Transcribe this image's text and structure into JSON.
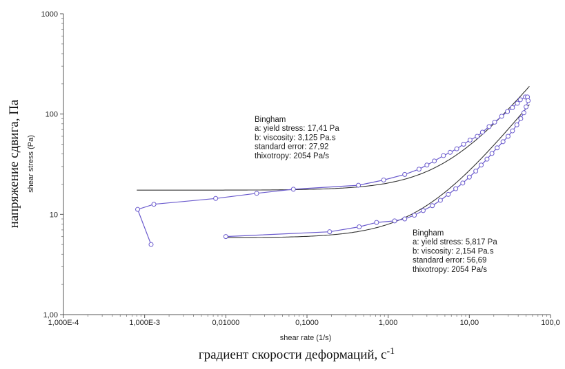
{
  "chart_data": {
    "type": "scatter",
    "title": "",
    "xlabel": "shear rate (1/s)",
    "ylabel": "shear stress (Pa)",
    "xlabel_ru": "градиент скорости деформаций, с",
    "xlabel_ru_sup": "-1",
    "ylabel_ru": "напряжение сдвига, Па",
    "xscale": "log",
    "yscale": "log",
    "xlim": [
      0.0001,
      100
    ],
    "ylim": [
      1,
      1000
    ],
    "grid": false,
    "x_ticks": [
      {
        "value": 0.0001,
        "label": "1,000E-4"
      },
      {
        "value": 0.001,
        "label": "1,000E-3"
      },
      {
        "value": 0.01,
        "label": "0,01000"
      },
      {
        "value": 0.1,
        "label": "0,1000"
      },
      {
        "value": 1,
        "label": "1,000"
      },
      {
        "value": 10,
        "label": "10,00"
      },
      {
        "value": 100,
        "label": "100,0"
      }
    ],
    "y_ticks": [
      {
        "value": 1,
        "label": "1,00"
      },
      {
        "value": 10,
        "label": "10"
      },
      {
        "value": 100,
        "label": "100"
      },
      {
        "value": 1000,
        "label": "1000"
      }
    ],
    "series": [
      {
        "color": "#6a5acd",
        "marker": "circle-open",
        "x": [
          0.0012,
          0.00082,
          0.0013,
          0.0075,
          0.024,
          0.068,
          0.43,
          0.88,
          1.6,
          2.4,
          3.0,
          3.7,
          4.8,
          5.8,
          7.0,
          8.5,
          10.2,
          12.5,
          14.5,
          17.5,
          20.5,
          25.0,
          29.5,
          34.0,
          39.0,
          42.5,
          49.0,
          52.0
        ],
        "y": [
          5.0,
          11.2,
          12.6,
          14.4,
          16.2,
          17.8,
          19.5,
          22.0,
          25.0,
          28.2,
          31.0,
          34.0,
          38.5,
          41.5,
          45.0,
          50.0,
          55.0,
          60.0,
          66.0,
          75.0,
          83.0,
          95.0,
          106.0,
          116.0,
          128.0,
          139.0,
          148.0,
          148.0
        ]
      },
      {
        "color": "#6a5acd",
        "marker": "circle-open",
        "x": [
          53.0,
          50.0,
          47.0,
          43.0,
          38.5,
          34.0,
          30.0,
          26.0,
          22.0,
          19.0,
          16.5,
          14.0,
          12.0,
          10.0,
          8.3,
          6.8,
          5.5,
          4.4,
          3.5,
          2.7,
          2.1,
          1.6,
          1.2,
          0.72,
          0.44,
          0.19,
          0.01
        ],
        "y": [
          136.0,
          118.0,
          103.0,
          90.0,
          78.0,
          68.0,
          60.0,
          53.0,
          46.0,
          40.5,
          35.5,
          31.0,
          27.0,
          23.5,
          20.5,
          18.0,
          15.8,
          13.8,
          12.2,
          10.9,
          9.8,
          9.0,
          8.6,
          8.3,
          7.5,
          6.7,
          6.0
        ]
      }
    ],
    "fits": [
      {
        "model": "Bingham",
        "yield_stress": 17.41,
        "viscosity": 3.125,
        "color": "#333333"
      },
      {
        "model": "Bingham",
        "yield_stress": 5.817,
        "viscosity": 2.154,
        "color": "#333333"
      }
    ],
    "annotations": [
      {
        "lines": [
          "Bingham",
          "a: yield stress: 17,41 Pa",
          "b: viscosity: 3,125 Pa.s",
          "standard error: 27,92",
          "thixotropy: 2054 Pa/s"
        ]
      },
      {
        "lines": [
          "Bingham",
          "a: yield stress: 5,817 Pa",
          "b: viscosity: 2,154 Pa.s",
          "standard error: 56,69",
          "thixotropy: 2054 Pa/s"
        ]
      }
    ]
  }
}
